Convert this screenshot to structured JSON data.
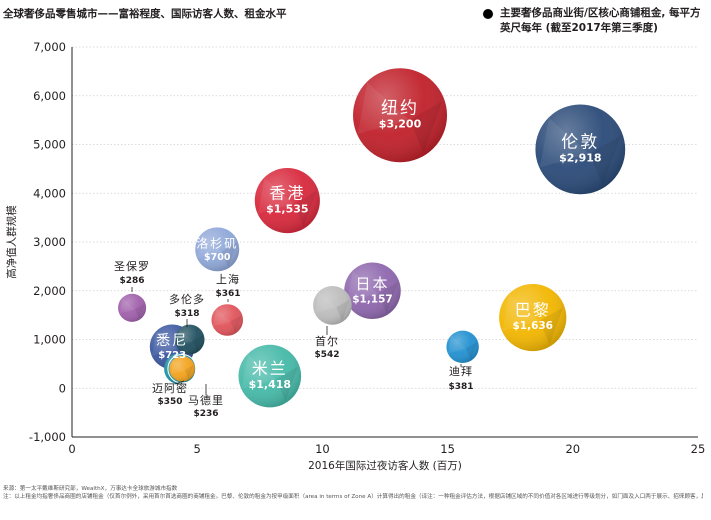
{
  "title": "全球奢侈品零售城市——富裕程度、国际访客人数、租金水平",
  "legend_text": "主要奢侈品商业街/区核心商铺租金, 每平方英尺每年 (截至2017年第三季度)",
  "footnote": {
    "source": "来源：第一太平戴维斯研究部，WealthX，万事达卡全球旅游城市指数",
    "note": "注：以上租金均指奢侈品商圈的店铺租金（仅首尔例外，采用首尔首选商圈的商铺租金。巴黎、伦敦的租金为按甲级面积（area in terms of Zone A）计算得出的租金（译注：一种租金评估方法，根据店铺区域的不同价值对各区域进行等级划分，如门面及入口两于展示、招徕顾客，属于最有价值的甲级区域）。计算面积时，甲级区域面积直接计入，其余各级区域则按照比例统一折算成甲级面积），因此要高于按实际面积计算得出的租金。"
  },
  "chart_data": {
    "type": "scatter",
    "xlabel": "2016年国际过夜访客人数 (百万)",
    "ylabel": "高净值人群规模",
    "xlim": [
      0,
      25
    ],
    "ylim": [
      -1000,
      7000
    ],
    "xticks": [
      "0",
      "5",
      "10",
      "15",
      "20",
      "25"
    ],
    "yticks": [
      "-1,000",
      "0",
      "1,000",
      "2,000",
      "3,000",
      "4,000",
      "5,000",
      "6,000",
      "7,000"
    ],
    "grid": true,
    "points": [
      {
        "name": "纽约",
        "rent": "$3,200",
        "rent_value": 3200,
        "x": 13.1,
        "y": 5600,
        "color": "#c0202a",
        "label_inside": true
      },
      {
        "name": "伦敦",
        "rent": "$2,918",
        "rent_value": 2918,
        "x": 20.3,
        "y": 4900,
        "color": "#2a4a78",
        "label_inside": true
      },
      {
        "name": "香港",
        "rent": "$1,535",
        "rent_value": 1535,
        "x": 8.6,
        "y": 3850,
        "color": "#d8283c",
        "label_inside": true
      },
      {
        "name": "巴黎",
        "rent": "$1,636",
        "rent_value": 1636,
        "x": 18.4,
        "y": 1450,
        "color": "#f2b600",
        "label_inside": true
      },
      {
        "name": "日本",
        "rent": "$1,157",
        "rent_value": 1157,
        "x": 12,
        "y": 2000,
        "color": "#8e67ae",
        "label_inside": true
      },
      {
        "name": "米兰",
        "rent": "$1,418",
        "rent_value": 1418,
        "x": 7.9,
        "y": 250,
        "color": "#45b9a8",
        "label_inside": true
      },
      {
        "name": "洛杉矶",
        "rent": "$700",
        "rent_value": 700,
        "x": 5.8,
        "y": 2850,
        "color": "#8fa7d8",
        "label_inside": true
      },
      {
        "name": "悉尼",
        "rent": "$723",
        "rent_value": 723,
        "x": 4,
        "y": 850,
        "color": "#3b57a0",
        "label_inside": true
      },
      {
        "name": "首尔",
        "rent": "$542",
        "rent_value": 542,
        "x": 10.4,
        "y": 1700,
        "color": "#bcbcbc",
        "label_inside": false
      },
      {
        "name": "圣保罗",
        "rent": "$286",
        "rent_value": 286,
        "x": 2.4,
        "y": 1650,
        "color": "#9f5faa",
        "label_inside": false
      },
      {
        "name": "上海",
        "rent": "$361",
        "rent_value": 361,
        "x": 6.2,
        "y": 1400,
        "color": "#e0535a",
        "label_inside": false
      },
      {
        "name": "多伦多",
        "rent": "$318",
        "rent_value": 318,
        "x": 4.7,
        "y": 1000,
        "color": "#1f4f5f",
        "label_inside": false
      },
      {
        "name": "迈阿密",
        "rent": "$350",
        "rent_value": 350,
        "x": 4.3,
        "y": 400,
        "color": "#1b8fa0",
        "label_inside": false
      },
      {
        "name": "马德里",
        "rent": "$236",
        "rent_value": 236,
        "x": 4.4,
        "y": 400,
        "color": "#f3a31d",
        "label_inside": false
      },
      {
        "name": "迪拜",
        "rent": "$381",
        "rent_value": 381,
        "x": 15.6,
        "y": 850,
        "color": "#2190d0",
        "label_inside": false
      }
    ]
  }
}
